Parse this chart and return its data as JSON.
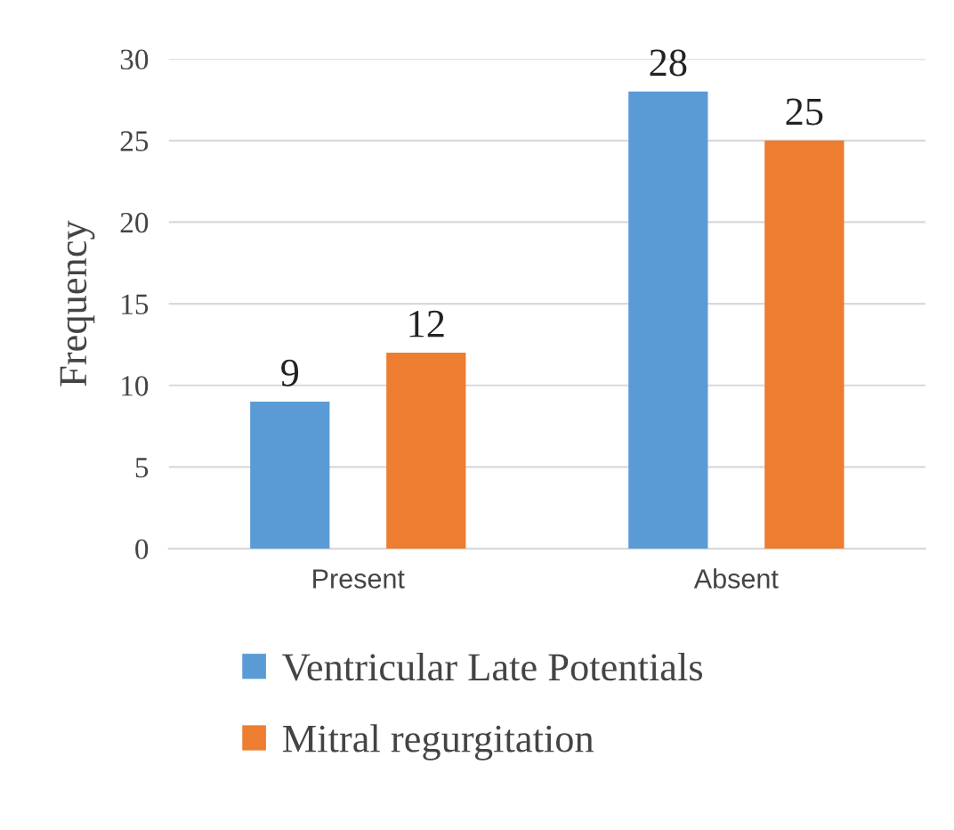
{
  "chart_data": {
    "type": "bar",
    "ylabel": "Frequency",
    "categories": [
      "Present",
      "Absent"
    ],
    "series": [
      {
        "name": "Ventricular Late Potentials",
        "color": "#5b9bd5",
        "values": [
          9,
          28
        ]
      },
      {
        "name": "Mitral regurgitation",
        "color": "#ed7d31",
        "values": [
          12,
          25
        ]
      }
    ],
    "ylim": [
      0,
      30
    ],
    "yticks": [
      0,
      5,
      10,
      15,
      20,
      25,
      30
    ],
    "grid": "y",
    "legend": "bottom",
    "data_labels": true
  }
}
